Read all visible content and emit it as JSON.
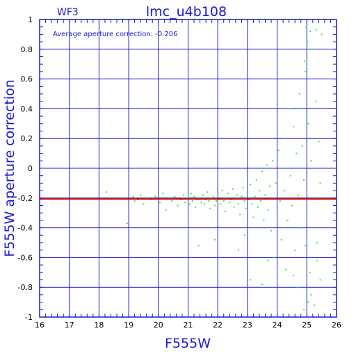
{
  "chart_data": {
    "type": "scatter",
    "title": "lmc_u4b108",
    "corner_label": "WF3",
    "annotation": "Average aperture correction: -0.206",
    "xlabel": "F555W",
    "ylabel": "F555W aperture correction",
    "xlim": [
      16,
      26
    ],
    "ylim": [
      -1,
      1
    ],
    "x_ticks": [
      "16",
      "17",
      "18",
      "19",
      "20",
      "21",
      "22",
      "23",
      "24",
      "25",
      "26"
    ],
    "y_ticks": [
      "-1",
      "-0.8",
      "-0.6",
      "-0.4",
      "-0.2",
      "0",
      "0.2",
      "0.4",
      "0.6",
      "0.8",
      "1"
    ],
    "grid": true,
    "reference_line": {
      "y": -0.206,
      "color": "#cc0000"
    },
    "colors": {
      "grid": "#1a1acc",
      "points": "#33ee33",
      "frame": "#1a1acc",
      "text": "#1a1acc"
    },
    "points": [
      [
        18.25,
        -0.16
      ],
      [
        18.85,
        -0.2
      ],
      [
        18.95,
        -0.37
      ],
      [
        19.15,
        -0.19
      ],
      [
        19.2,
        -0.22
      ],
      [
        19.3,
        -0.21
      ],
      [
        19.4,
        -0.18
      ],
      [
        19.5,
        -0.24
      ],
      [
        19.6,
        -0.2
      ],
      [
        19.75,
        -0.21
      ],
      [
        19.9,
        -0.19
      ],
      [
        20.05,
        -0.23
      ],
      [
        20.15,
        -0.17
      ],
      [
        20.25,
        -0.28
      ],
      [
        20.35,
        -0.2
      ],
      [
        20.45,
        -0.22
      ],
      [
        20.55,
        -0.19
      ],
      [
        20.65,
        -0.25
      ],
      [
        20.75,
        -0.21
      ],
      [
        20.85,
        -0.18
      ],
      [
        20.9,
        -0.23
      ],
      [
        21.0,
        -0.2
      ],
      [
        21.05,
        -0.24
      ],
      [
        21.1,
        -0.17
      ],
      [
        21.15,
        -0.22
      ],
      [
        21.2,
        -0.19
      ],
      [
        21.25,
        -0.26
      ],
      [
        21.3,
        -0.21
      ],
      [
        21.35,
        -0.52
      ],
      [
        21.4,
        -0.2
      ],
      [
        21.45,
        -0.23
      ],
      [
        21.5,
        -0.18
      ],
      [
        21.55,
        -0.24
      ],
      [
        21.6,
        -0.21
      ],
      [
        21.65,
        -0.16
      ],
      [
        21.7,
        -0.22
      ],
      [
        21.75,
        -0.27
      ],
      [
        21.8,
        -0.2
      ],
      [
        21.85,
        -0.19
      ],
      [
        21.9,
        -0.25
      ],
      [
        21.95,
        -0.22
      ],
      [
        22.0,
        -0.18
      ],
      [
        22.05,
        -0.21
      ],
      [
        22.1,
        -0.24
      ],
      [
        22.15,
        -0.15
      ],
      [
        22.2,
        -0.22
      ],
      [
        22.25,
        -0.29
      ],
      [
        22.3,
        -0.2
      ],
      [
        22.35,
        -0.17
      ],
      [
        22.4,
        -0.23
      ],
      [
        22.45,
        -0.21
      ],
      [
        22.5,
        -0.14
      ],
      [
        22.55,
        -0.26
      ],
      [
        22.6,
        -0.2
      ],
      [
        22.65,
        -0.18
      ],
      [
        22.7,
        -0.24
      ],
      [
        22.75,
        -0.31
      ],
      [
        22.8,
        -0.19
      ],
      [
        22.85,
        -0.13
      ],
      [
        22.9,
        -0.22
      ],
      [
        22.95,
        -0.27
      ],
      [
        23.0,
        -0.17
      ],
      [
        23.05,
        -0.21
      ],
      [
        23.1,
        -0.11
      ],
      [
        23.15,
        -0.24
      ],
      [
        23.2,
        -0.33
      ],
      [
        23.25,
        -0.19
      ],
      [
        23.3,
        -0.08
      ],
      [
        23.35,
        -0.26
      ],
      [
        23.4,
        -0.15
      ],
      [
        23.45,
        -0.22
      ],
      [
        23.5,
        -0.02
      ],
      [
        23.55,
        -0.35
      ],
      [
        23.6,
        -0.18
      ],
      [
        23.65,
        0.02
      ],
      [
        23.7,
        -0.28
      ],
      [
        23.75,
        -0.12
      ],
      [
        23.8,
        -0.42
      ],
      [
        23.85,
        0.05
      ],
      [
        23.9,
        -0.2
      ],
      [
        23.95,
        -0.1
      ],
      [
        24.0,
        -0.3
      ],
      [
        24.05,
        0.12
      ],
      [
        24.1,
        -0.22
      ],
      [
        24.15,
        -0.48
      ],
      [
        24.2,
        0.0
      ],
      [
        24.25,
        -0.15
      ],
      [
        24.3,
        0.2
      ],
      [
        24.35,
        -0.35
      ],
      [
        24.4,
        0.4
      ],
      [
        24.45,
        -0.05
      ],
      [
        24.5,
        -0.25
      ],
      [
        24.55,
        0.28
      ],
      [
        24.6,
        -0.55
      ],
      [
        24.65,
        0.1
      ],
      [
        24.7,
        -0.18
      ],
      [
        24.75,
        0.5
      ],
      [
        24.8,
        -0.4
      ],
      [
        24.85,
        0.15
      ],
      [
        24.9,
        -0.08
      ],
      [
        24.95,
        0.65
      ],
      [
        25.0,
        -0.3
      ],
      [
        25.05,
        0.3
      ],
      [
        25.1,
        -0.7
      ],
      [
        25.15,
        0.05
      ],
      [
        25.2,
        0.8
      ],
      [
        25.25,
        -0.2
      ],
      [
        25.3,
        0.45
      ],
      [
        25.35,
        -0.5
      ],
      [
        25.4,
        0.18
      ],
      [
        25.45,
        -0.1
      ],
      [
        25.5,
        0.9
      ],
      [
        24.98,
        0.95
      ],
      [
        25.12,
        0.92
      ],
      [
        25.32,
        0.93
      ],
      [
        25.02,
        0.85
      ],
      [
        24.92,
        0.72
      ],
      [
        25.05,
        -0.9
      ],
      [
        25.15,
        -0.85
      ],
      [
        24.7,
        -0.8
      ],
      [
        23.5,
        -0.78
      ],
      [
        23.1,
        -0.75
      ],
      [
        23.7,
        -0.62
      ],
      [
        24.3,
        -0.68
      ],
      [
        22.7,
        -0.55
      ],
      [
        22.9,
        -0.45
      ],
      [
        21.9,
        -0.48
      ],
      [
        23.9,
        -0.6
      ],
      [
        24.9,
        -0.95
      ],
      [
        25.25,
        -0.92
      ],
      [
        25.45,
        -0.75
      ],
      [
        24.55,
        -0.72
      ],
      [
        24.95,
        -0.52
      ],
      [
        25.35,
        -0.62
      ]
    ]
  }
}
